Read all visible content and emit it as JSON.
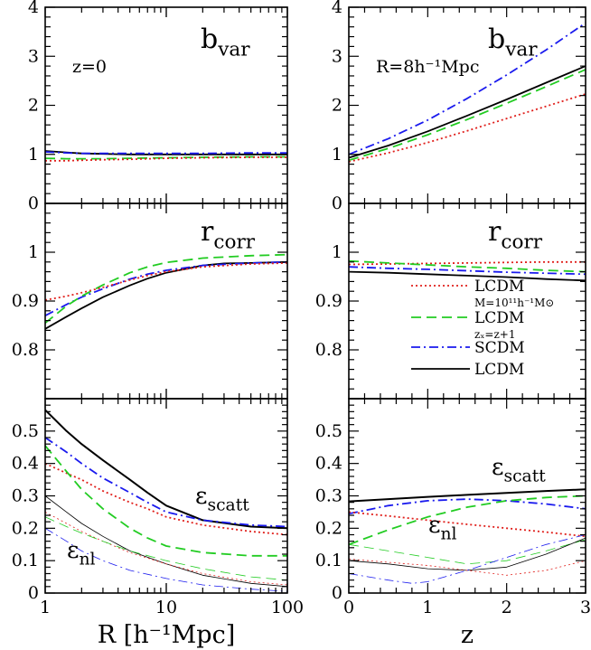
{
  "colors": {
    "red": "#e0201c",
    "green": "#22cc22",
    "blue": "#1a1aee",
    "black": "#000000"
  },
  "legend": [
    {
      "label": "LCDM",
      "sub": "M=10¹¹h⁻¹M⊙",
      "style": "dotted",
      "color": "#e0201c"
    },
    {
      "label": "LCDM",
      "sub": "zₓ=z+1",
      "style": "dashed",
      "color": "#22cc22"
    },
    {
      "label": "SCDM",
      "sub": "",
      "style": "dashdot",
      "color": "#1a1aee"
    },
    {
      "label": "LCDM",
      "sub": "",
      "style": "solid",
      "color": "#000000"
    }
  ],
  "chart_data": [
    {
      "type": "line",
      "panel": "top-left",
      "annotation": "b",
      "annotation_sub": "var",
      "note": "z=0",
      "xscale": "log",
      "xlim": [
        1,
        100
      ],
      "ylim": [
        0,
        4
      ],
      "yticks": [
        "0",
        "1",
        "2",
        "3",
        "4"
      ],
      "series": [
        {
          "style": "solid",
          "color": "#000000",
          "x": [
            1,
            1.5,
            2,
            3,
            5,
            10,
            20,
            50,
            100
          ],
          "y": [
            1.07,
            1.04,
            1.02,
            1.01,
            1.0,
            1.0,
            1.0,
            1.0,
            1.0
          ]
        },
        {
          "style": "dashdot",
          "color": "#1a1aee",
          "x": [
            1,
            1.5,
            2,
            3,
            5,
            10,
            20,
            50,
            100
          ],
          "y": [
            1.05,
            1.03,
            1.02,
            1.02,
            1.02,
            1.02,
            1.02,
            1.03,
            1.03
          ]
        },
        {
          "style": "dashed",
          "color": "#22cc22",
          "x": [
            1,
            1.5,
            2,
            3,
            5,
            10,
            20,
            50,
            100
          ],
          "y": [
            0.92,
            0.91,
            0.91,
            0.91,
            0.92,
            0.93,
            0.94,
            0.95,
            0.95
          ]
        },
        {
          "style": "dotted",
          "color": "#e0201c",
          "x": [
            1,
            1.5,
            2,
            3,
            5,
            10,
            20,
            50,
            100
          ],
          "y": [
            0.87,
            0.87,
            0.88,
            0.89,
            0.9,
            0.92,
            0.93,
            0.94,
            0.94
          ]
        }
      ]
    },
    {
      "type": "line",
      "panel": "top-right",
      "annotation": "b",
      "annotation_sub": "var",
      "note": "R=8h⁻¹Mpc",
      "xlim": [
        0,
        3
      ],
      "ylim": [
        0,
        4
      ],
      "yticks": [
        "0",
        "1",
        "2",
        "3",
        "4"
      ],
      "series": [
        {
          "style": "dashdot",
          "color": "#1a1aee",
          "x": [
            0,
            0.5,
            1,
            1.5,
            2,
            2.5,
            3
          ],
          "y": [
            1.0,
            1.32,
            1.7,
            2.14,
            2.62,
            3.13,
            3.68
          ]
        },
        {
          "style": "solid",
          "color": "#000000",
          "x": [
            0,
            0.5,
            1,
            1.5,
            2,
            2.5,
            3
          ],
          "y": [
            0.93,
            1.18,
            1.47,
            1.79,
            2.12,
            2.46,
            2.8
          ]
        },
        {
          "style": "dashed",
          "color": "#22cc22",
          "x": [
            0,
            0.5,
            1,
            1.5,
            2,
            2.5,
            3
          ],
          "y": [
            0.88,
            1.12,
            1.4,
            1.71,
            2.04,
            2.38,
            2.73
          ]
        },
        {
          "style": "dotted",
          "color": "#e0201c",
          "x": [
            0,
            0.5,
            1,
            1.5,
            2,
            2.5,
            3
          ],
          "y": [
            0.85,
            1.03,
            1.24,
            1.48,
            1.73,
            1.98,
            2.23
          ]
        }
      ]
    },
    {
      "type": "line",
      "panel": "middle-left",
      "annotation": "r",
      "annotation_sub": "corr",
      "note": "",
      "xscale": "log",
      "xlim": [
        1,
        100
      ],
      "ylim": [
        0.7,
        1.1
      ],
      "yticks": [
        "0.8",
        "0.9",
        "1"
      ],
      "series": [
        {
          "style": "solid",
          "color": "#000000",
          "x": [
            1,
            1.5,
            2,
            3,
            5,
            7,
            10,
            20,
            30,
            50,
            100
          ],
          "y": [
            0.843,
            0.868,
            0.885,
            0.908,
            0.932,
            0.946,
            0.958,
            0.973,
            0.977,
            0.978,
            0.98
          ]
        },
        {
          "style": "dashdot",
          "color": "#1a1aee",
          "x": [
            1,
            1.5,
            2,
            3,
            5,
            7,
            10,
            20,
            50,
            100
          ],
          "y": [
            0.87,
            0.893,
            0.908,
            0.925,
            0.945,
            0.955,
            0.963,
            0.973,
            0.978,
            0.98
          ]
        },
        {
          "style": "dashed",
          "color": "#22cc22",
          "x": [
            1,
            1.5,
            2,
            3,
            5,
            7,
            10,
            20,
            50,
            100
          ],
          "y": [
            0.855,
            0.89,
            0.91,
            0.933,
            0.958,
            0.97,
            0.979,
            0.988,
            0.993,
            0.995
          ]
        },
        {
          "style": "dotted",
          "color": "#e0201c",
          "x": [
            1,
            1.5,
            2,
            3,
            5,
            7,
            10,
            20,
            50,
            100
          ],
          "y": [
            0.902,
            0.91,
            0.917,
            0.928,
            0.943,
            0.952,
            0.96,
            0.97,
            0.976,
            0.978
          ]
        }
      ]
    },
    {
      "type": "line",
      "panel": "middle-right",
      "annotation": "r",
      "annotation_sub": "corr",
      "note": "",
      "xlim": [
        0,
        3
      ],
      "ylim": [
        0.7,
        1.1
      ],
      "yticks": [
        "0.8",
        "0.9",
        "1"
      ],
      "series": [
        {
          "style": "dotted",
          "color": "#e0201c",
          "x": [
            0,
            0.5,
            1,
            1.5,
            2,
            2.5,
            3
          ],
          "y": [
            0.975,
            0.976,
            0.977,
            0.978,
            0.979,
            0.98,
            0.98
          ]
        },
        {
          "style": "dashed",
          "color": "#22cc22",
          "x": [
            0,
            0.5,
            1,
            1.5,
            2,
            2.5,
            3
          ],
          "y": [
            0.982,
            0.978,
            0.974,
            0.97,
            0.967,
            0.963,
            0.96
          ]
        },
        {
          "style": "dashdot",
          "color": "#1a1aee",
          "x": [
            0,
            0.5,
            1,
            1.5,
            2,
            2.5,
            3
          ],
          "y": [
            0.97,
            0.967,
            0.965,
            0.962,
            0.959,
            0.957,
            0.955
          ]
        },
        {
          "style": "solid",
          "color": "#000000",
          "x": [
            0,
            0.5,
            1,
            1.5,
            2,
            2.5,
            3
          ],
          "y": [
            0.96,
            0.958,
            0.955,
            0.952,
            0.949,
            0.945,
            0.942
          ]
        }
      ]
    },
    {
      "type": "line",
      "panel": "bottom-left",
      "annotation": "ε",
      "annotation_sub": "scatt",
      "annotation2": "ε",
      "annotation2_sub": "nl",
      "xscale": "log",
      "xlim": [
        1,
        100
      ],
      "ylim": [
        0,
        0.6
      ],
      "yticks": [
        "0",
        "0.1",
        "0.2",
        "0.3",
        "0.4",
        "0.5"
      ],
      "xticks": [
        "1",
        "10",
        "100"
      ],
      "xlabel": "R  [h⁻¹Mpc]",
      "series": [
        {
          "style": "solid",
          "color": "#000000",
          "width": 2.0,
          "x": [
            1,
            1.5,
            2,
            3,
            5,
            7,
            10,
            20,
            50,
            100
          ],
          "y": [
            0.565,
            0.5,
            0.46,
            0.41,
            0.35,
            0.31,
            0.27,
            0.225,
            0.205,
            0.2
          ]
        },
        {
          "style": "dashdot",
          "color": "#1a1aee",
          "width": 1.8,
          "x": [
            1,
            1.5,
            2,
            3,
            5,
            7,
            10,
            20,
            50,
            100
          ],
          "y": [
            0.48,
            0.435,
            0.4,
            0.355,
            0.31,
            0.28,
            0.25,
            0.225,
            0.21,
            0.205
          ]
        },
        {
          "style": "dotted",
          "color": "#e0201c",
          "width": 1.8,
          "x": [
            1,
            1.5,
            2,
            3,
            5,
            7,
            10,
            20,
            50,
            100
          ],
          "y": [
            0.4,
            0.37,
            0.35,
            0.315,
            0.28,
            0.26,
            0.235,
            0.21,
            0.19,
            0.18
          ]
        },
        {
          "style": "dashed",
          "color": "#22cc22",
          "width": 1.8,
          "x": [
            1,
            1.5,
            2,
            3,
            5,
            7,
            10,
            20,
            50,
            100
          ],
          "y": [
            0.455,
            0.375,
            0.32,
            0.26,
            0.2,
            0.17,
            0.145,
            0.125,
            0.115,
            0.115
          ]
        },
        {
          "style": "solid",
          "color": "#000000",
          "width": 0.8,
          "x": [
            1,
            1.5,
            2,
            3,
            5,
            10,
            20,
            50,
            100
          ],
          "y": [
            0.3,
            0.25,
            0.215,
            0.175,
            0.13,
            0.09,
            0.055,
            0.03,
            0.02
          ]
        },
        {
          "style": "dotted",
          "color": "#e0201c",
          "width": 0.8,
          "x": [
            1,
            1.5,
            2,
            3,
            5,
            10,
            20,
            50,
            100
          ],
          "y": [
            0.25,
            0.215,
            0.19,
            0.16,
            0.125,
            0.09,
            0.06,
            0.035,
            0.025
          ]
        },
        {
          "style": "dashed",
          "color": "#22cc22",
          "width": 0.8,
          "x": [
            1,
            1.5,
            2,
            3,
            5,
            10,
            20,
            50,
            100
          ],
          "y": [
            0.235,
            0.205,
            0.185,
            0.16,
            0.13,
            0.1,
            0.075,
            0.05,
            0.04
          ]
        },
        {
          "style": "dashdot",
          "color": "#1a1aee",
          "width": 0.8,
          "x": [
            1,
            1.5,
            2,
            3,
            5,
            10,
            20,
            50,
            100
          ],
          "y": [
            0.2,
            0.16,
            0.13,
            0.1,
            0.07,
            0.045,
            0.025,
            0.012,
            0.005
          ]
        }
      ]
    },
    {
      "type": "line",
      "panel": "bottom-right",
      "annotation": "ε",
      "annotation_sub": "scatt",
      "annotation2": "ε",
      "annotation2_sub": "nl",
      "xlim": [
        0,
        3
      ],
      "ylim": [
        0,
        0.6
      ],
      "yticks": [
        "0",
        "0.1",
        "0.2",
        "0.3",
        "0.4",
        "0.5"
      ],
      "xticks": [
        "0",
        "1",
        "2",
        "3"
      ],
      "xlabel": "z",
      "series": [
        {
          "style": "solid",
          "color": "#000000",
          "width": 2.0,
          "x": [
            0,
            0.5,
            1,
            1.5,
            2,
            2.5,
            3
          ],
          "y": [
            0.283,
            0.29,
            0.297,
            0.303,
            0.309,
            0.315,
            0.32
          ]
        },
        {
          "style": "dashdot",
          "color": "#1a1aee",
          "width": 1.8,
          "x": [
            0,
            0.5,
            1,
            1.5,
            2,
            2.5,
            3
          ],
          "y": [
            0.245,
            0.27,
            0.285,
            0.29,
            0.285,
            0.275,
            0.26
          ]
        },
        {
          "style": "dotted",
          "color": "#e0201c",
          "width": 1.8,
          "x": [
            0,
            0.5,
            1,
            1.5,
            2,
            2.5,
            3
          ],
          "y": [
            0.25,
            0.238,
            0.225,
            0.212,
            0.2,
            0.188,
            0.175
          ]
        },
        {
          "style": "dashed",
          "color": "#22cc22",
          "width": 1.8,
          "x": [
            0,
            0.5,
            1,
            1.5,
            2,
            2.5,
            3
          ],
          "y": [
            0.15,
            0.195,
            0.235,
            0.265,
            0.285,
            0.295,
            0.3
          ]
        },
        {
          "style": "dashed",
          "color": "#22cc22",
          "width": 0.8,
          "x": [
            0,
            0.5,
            1,
            1.5,
            2,
            2.5,
            3
          ],
          "y": [
            0.15,
            0.13,
            0.11,
            0.09,
            0.1,
            0.13,
            0.165
          ]
        },
        {
          "style": "solid",
          "color": "#000000",
          "width": 0.8,
          "x": [
            0,
            0.5,
            1,
            1.5,
            2,
            2.5,
            3
          ],
          "y": [
            0.1,
            0.09,
            0.075,
            0.07,
            0.08,
            0.12,
            0.17
          ]
        },
        {
          "style": "dotted",
          "color": "#e0201c",
          "width": 0.8,
          "x": [
            0,
            0.5,
            1,
            1.5,
            2,
            2.5,
            3
          ],
          "y": [
            0.105,
            0.095,
            0.085,
            0.07,
            0.055,
            0.07,
            0.1
          ]
        },
        {
          "style": "dashdot",
          "color": "#1a1aee",
          "width": 0.8,
          "x": [
            0,
            0.5,
            0.8,
            1,
            1.5,
            2,
            2.5,
            3
          ],
          "y": [
            0.06,
            0.04,
            0.03,
            0.035,
            0.07,
            0.11,
            0.15,
            0.18
          ]
        }
      ]
    }
  ]
}
